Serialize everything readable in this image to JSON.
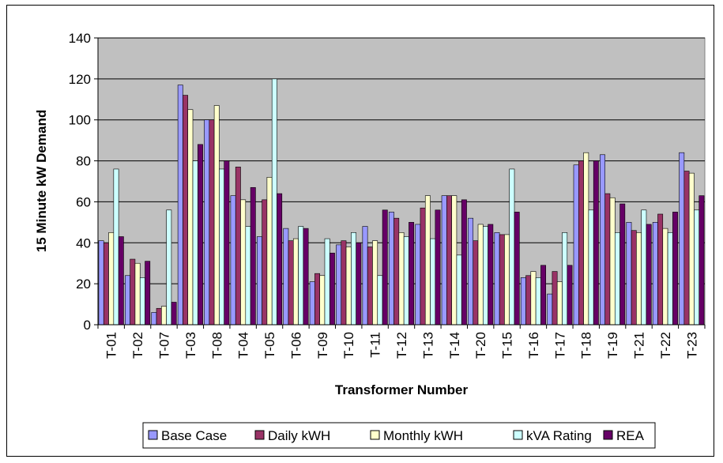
{
  "chart_data": {
    "type": "bar",
    "xlabel": "Transformer Number",
    "ylabel": "15 Minute kW Demand",
    "ylim": [
      0,
      140
    ],
    "yticks": [
      0,
      20,
      40,
      60,
      80,
      100,
      120,
      140
    ],
    "grid": true,
    "legend_position": "bottom",
    "plot_background": "#c0c0c0",
    "categories": [
      "T-01",
      "T-02",
      "T-07",
      "T-03",
      "T-08",
      "T-04",
      "T-05",
      "T-06",
      "T-09",
      "T-10",
      "T-11",
      "T-12",
      "T-13",
      "T-14",
      "T-20",
      "T-15",
      "T-16",
      "T-17",
      "T-18",
      "T-19",
      "T-21",
      "T-22",
      "T-23"
    ],
    "series": [
      {
        "name": "Base Case",
        "color": "#9999ff",
        "values": [
          41,
          24,
          6,
          117,
          100,
          63,
          43,
          47,
          21,
          39,
          48,
          55,
          49,
          63,
          52,
          45,
          23,
          15,
          78,
          83,
          50,
          50,
          84
        ]
      },
      {
        "name": "Daily kWH",
        "color": "#993366",
        "values": [
          40,
          32,
          8,
          112,
          100,
          77,
          61,
          41,
          25,
          41,
          38,
          52,
          57,
          63,
          41,
          44,
          24,
          26,
          80,
          64,
          46,
          54,
          75
        ]
      },
      {
        "name": "Monthly kWH",
        "color": "#ffffcc",
        "values": [
          45,
          30,
          9,
          105,
          107,
          61,
          72,
          42,
          24,
          38,
          41,
          45,
          63,
          63,
          49,
          44,
          26,
          21,
          84,
          62,
          45,
          47,
          74
        ]
      },
      {
        "name": "kVA Rating",
        "color": "#ccffff",
        "values": [
          76,
          23,
          56,
          80,
          76,
          48,
          120,
          48,
          42,
          45,
          24,
          43,
          42,
          34,
          48,
          76,
          23,
          45,
          56,
          45,
          56,
          45,
          56
        ]
      },
      {
        "name": "REA",
        "color": "#660066",
        "values": [
          43,
          31,
          11,
          88,
          80,
          67,
          64,
          47,
          35,
          40,
          56,
          50,
          56,
          61,
          49,
          55,
          29,
          29,
          80,
          59,
          49,
          55,
          63
        ]
      }
    ]
  }
}
